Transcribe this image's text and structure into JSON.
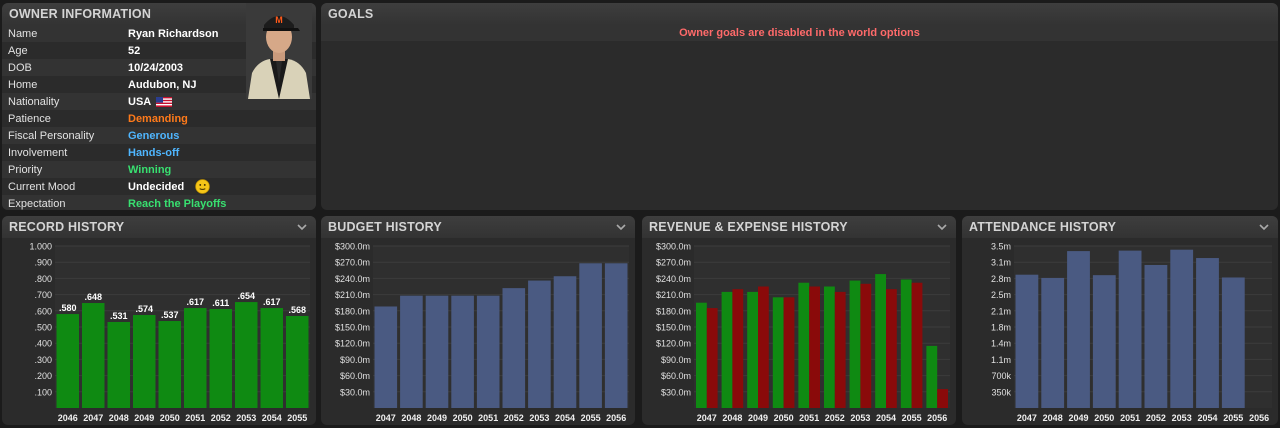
{
  "owner": {
    "title": "OWNER INFORMATION",
    "rows": [
      {
        "label": "Name",
        "value": "Ryan Richardson",
        "color": "#ffffff"
      },
      {
        "label": "Age",
        "value": "52",
        "color": "#ffffff"
      },
      {
        "label": "DOB",
        "value": "10/24/2003",
        "color": "#ffffff"
      },
      {
        "label": "Home",
        "value": "Audubon, NJ",
        "color": "#ffffff"
      },
      {
        "label": "Nationality",
        "value": "USA",
        "color": "#ffffff"
      },
      {
        "label": "Patience",
        "value": "Demanding",
        "color": "#ff7a1a"
      },
      {
        "label": "Fiscal Personality",
        "value": "Generous",
        "color": "#4fb6ff"
      },
      {
        "label": "Involvement",
        "value": "Hands-off",
        "color": "#4fb6ff"
      },
      {
        "label": "Priority",
        "value": "Winning",
        "color": "#38e070"
      },
      {
        "label": "Current Mood",
        "value": "Undecided",
        "color": "#ffffff"
      },
      {
        "label": "Expectation",
        "value": "Reach the Playoffs",
        "color": "#38e070"
      }
    ],
    "portrait_icon": "owner-portrait",
    "flag_icon": "usa-flag-icon",
    "mood_icon": "neutral-face-icon"
  },
  "goals": {
    "title": "GOALS",
    "message": "Owner goals are disabled in the world options"
  },
  "record": {
    "title": "RECORD HISTORY",
    "chart_data": {
      "type": "bar",
      "title": "RECORD HISTORY",
      "categories": [
        "2046",
        "2047",
        "2048",
        "2049",
        "2050",
        "2051",
        "2052",
        "2053",
        "2054",
        "2055"
      ],
      "values": [
        0.58,
        0.648,
        0.531,
        0.574,
        0.537,
        0.617,
        0.611,
        0.654,
        0.617,
        0.568
      ],
      "data_labels": [
        ".580",
        ".648",
        ".531",
        ".574",
        ".537",
        ".617",
        ".611",
        ".654",
        ".617",
        ".568"
      ],
      "yticks": [
        "1.000",
        ".900",
        ".800",
        ".700",
        ".600",
        ".500",
        ".400",
        ".300",
        ".200",
        ".100"
      ],
      "ylim": [
        0,
        1.0
      ],
      "color": "#0f8a12"
    }
  },
  "budget": {
    "title": "BUDGET HISTORY",
    "chart_data": {
      "type": "bar",
      "title": "BUDGET HISTORY",
      "categories": [
        "2047",
        "2048",
        "2049",
        "2050",
        "2051",
        "2052",
        "2053",
        "2054",
        "2055",
        "2056"
      ],
      "values": [
        188,
        208,
        208,
        208,
        208,
        222,
        236,
        244,
        268,
        268
      ],
      "yticks": [
        "$300.0m",
        "$270.0m",
        "$240.0m",
        "$210.0m",
        "$180.0m",
        "$150.0m",
        "$120.0m",
        "$90.0m",
        "$60.0m",
        "$30.0m"
      ],
      "ylim": [
        0,
        300
      ],
      "color": "#4a5a82"
    }
  },
  "revenue": {
    "title": "REVENUE & EXPENSE HISTORY",
    "chart_data": {
      "type": "bar",
      "title": "REVENUE & EXPENSE HISTORY",
      "categories": [
        "2047",
        "2048",
        "2049",
        "2050",
        "2051",
        "2052",
        "2053",
        "2054",
        "2055",
        "2056"
      ],
      "series": [
        {
          "values": [
            195,
            215,
            215,
            205,
            232,
            225,
            236,
            248,
            238,
            115
          ],
          "color": "#0f8a12"
        },
        {
          "values": [
            185,
            220,
            225,
            205,
            225,
            215,
            230,
            220,
            232,
            35
          ],
          "color": "#8a0a0a"
        }
      ],
      "yticks": [
        "$300.0m",
        "$270.0m",
        "$240.0m",
        "$210.0m",
        "$180.0m",
        "$150.0m",
        "$120.0m",
        "$90.0m",
        "$60.0m",
        "$30.0m"
      ],
      "ylim": [
        0,
        300
      ]
    }
  },
  "attendance": {
    "title": "ATTENDANCE HISTORY",
    "chart_data": {
      "type": "bar",
      "title": "ATTENDANCE HISTORY",
      "categories": [
        "2047",
        "2048",
        "2049",
        "2050",
        "2051",
        "2052",
        "2053",
        "2054",
        "2055",
        "2056"
      ],
      "values": [
        2880,
        2810,
        3390,
        2870,
        3400,
        3090,
        3420,
        3240,
        2820,
        0
      ],
      "yticks": [
        "3.5m",
        "3.1m",
        "2.8m",
        "2.5m",
        "2.1m",
        "1.8m",
        "1.4m",
        "1.1m",
        "700k",
        "350k"
      ],
      "ylim": [
        0,
        3500
      ],
      "color": "#4a5a82"
    }
  }
}
